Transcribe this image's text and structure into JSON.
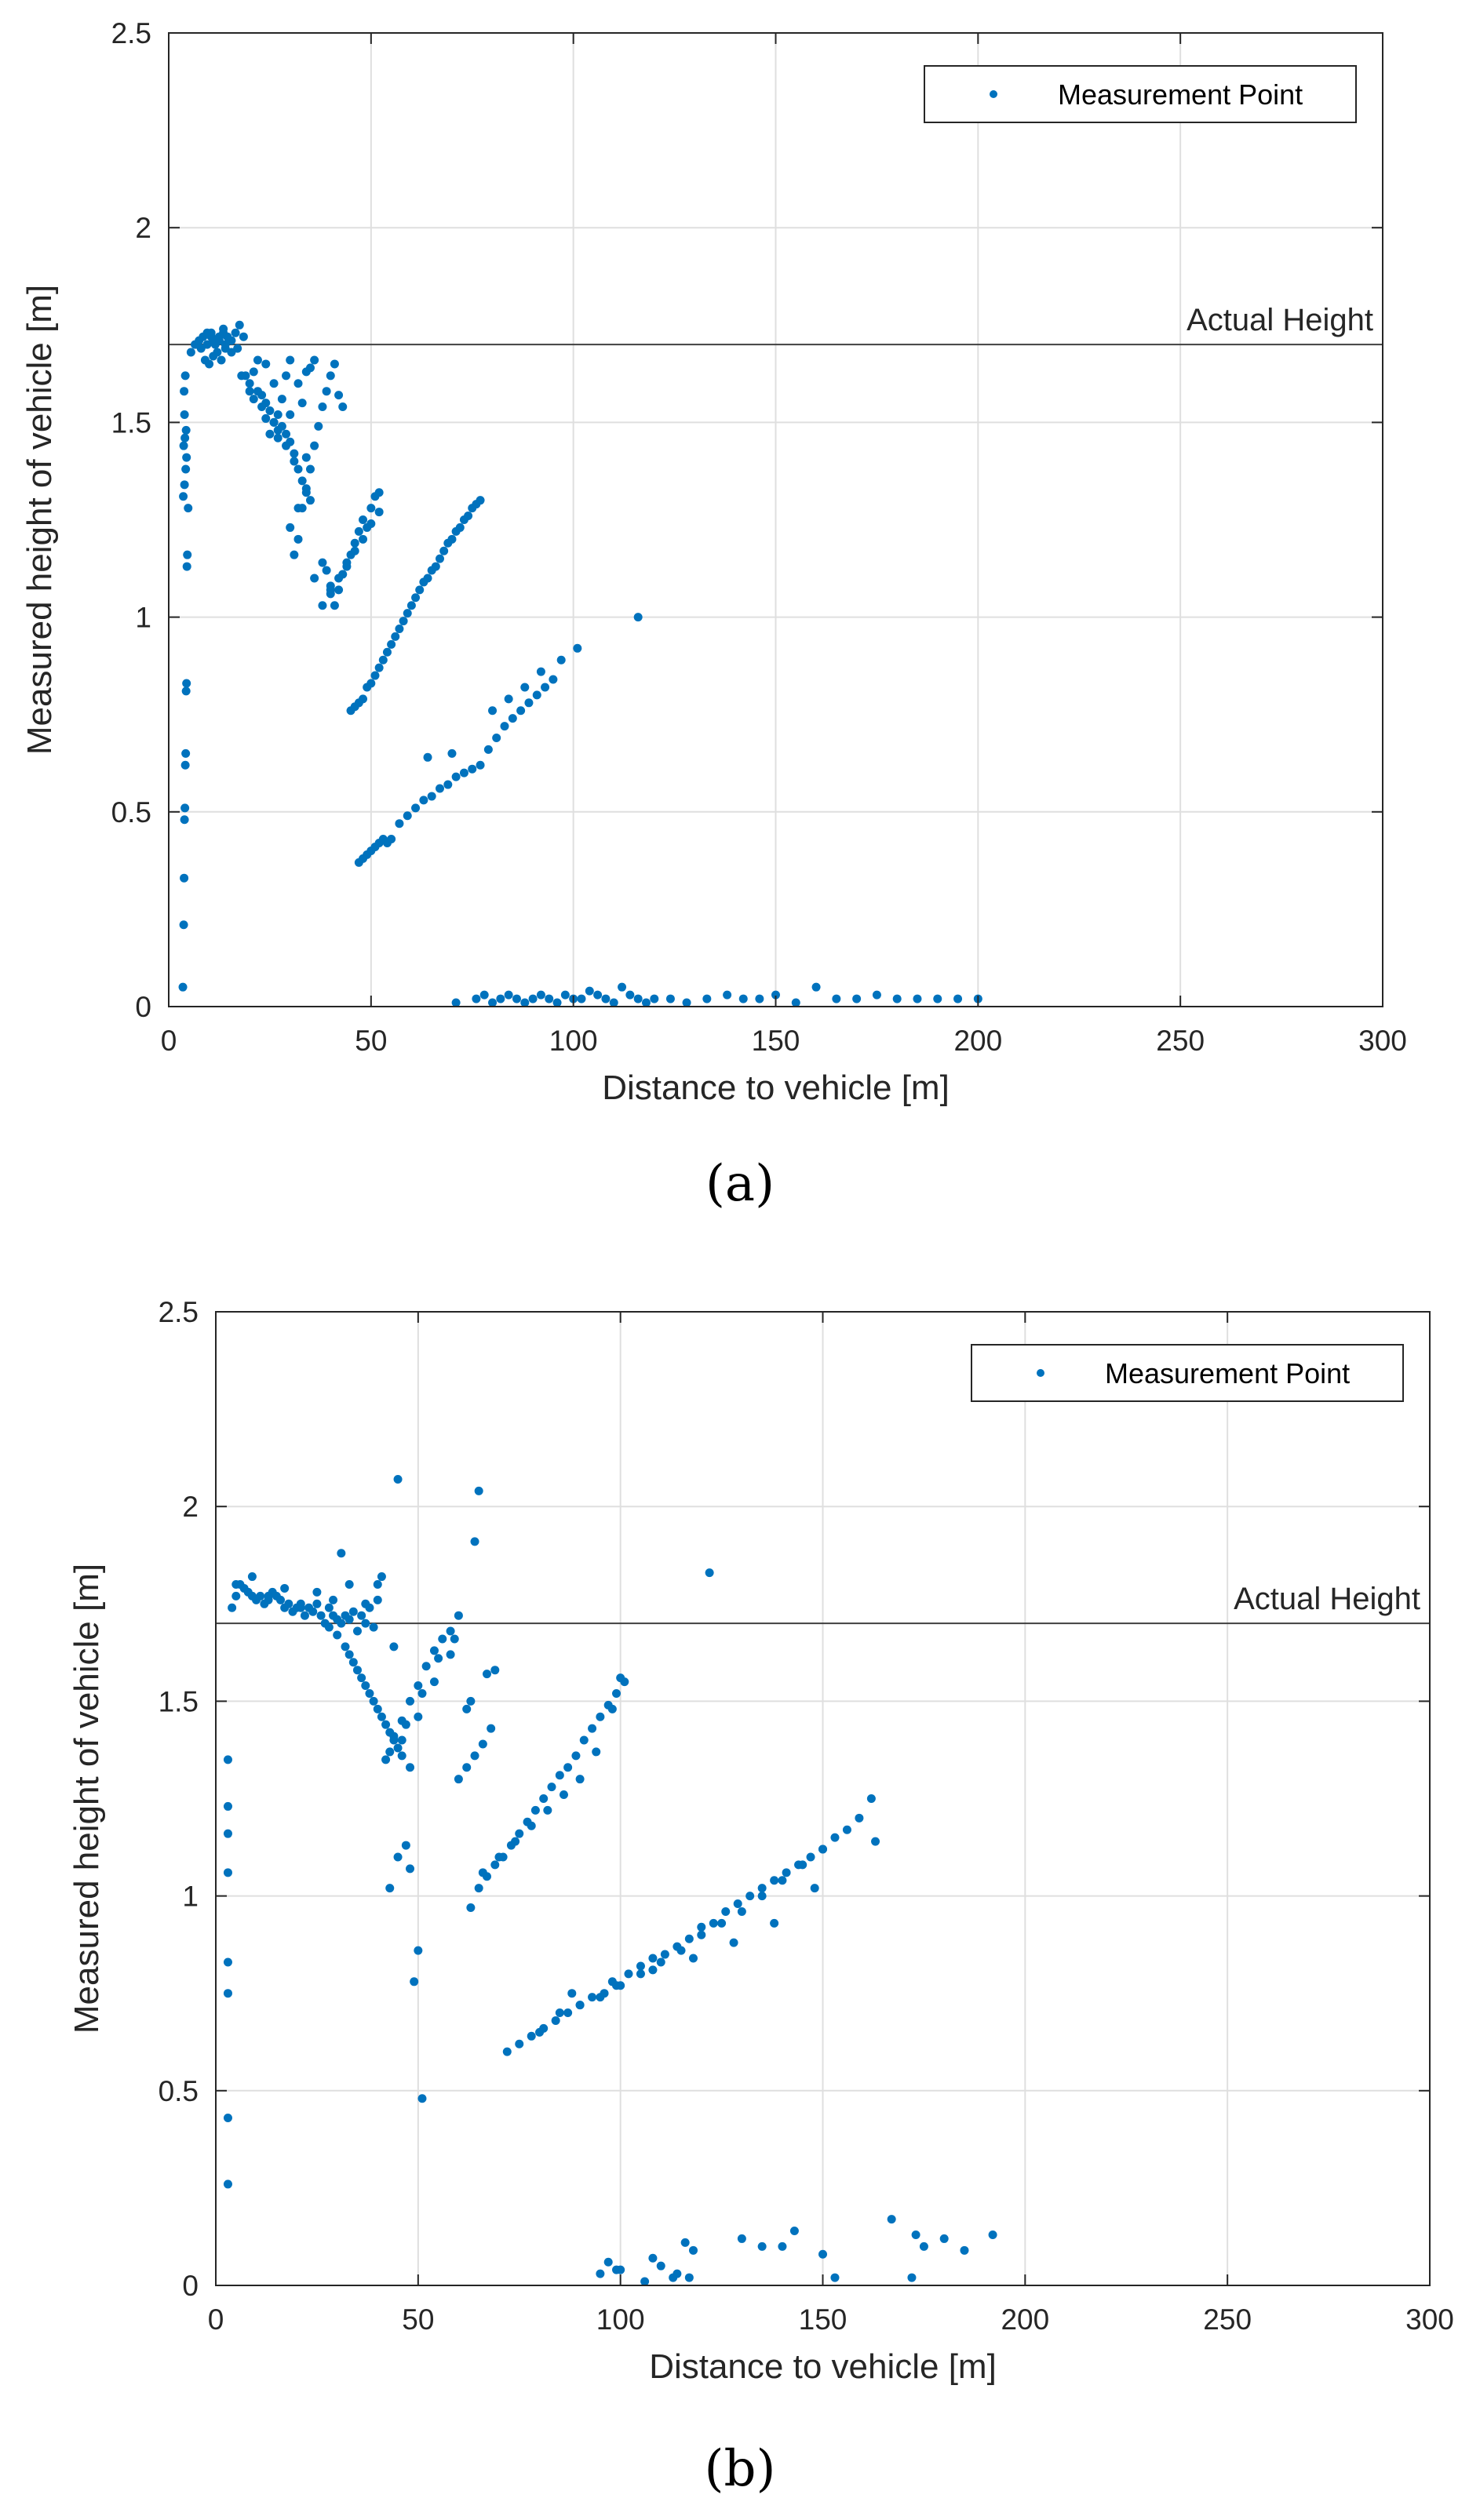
{
  "colors": {
    "point": "#0072BD",
    "grid": "#DFDFDF",
    "axis": "#262626",
    "reference": "#404040"
  },
  "chart_data": [
    {
      "type": "scatter",
      "caption": "(a)",
      "xlabel": "Distance to vehicle [m]",
      "ylabel": "Measured height of vehicle [m]",
      "xlim": [
        0,
        300
      ],
      "ylim": [
        0,
        2.5
      ],
      "xticks": [
        0,
        50,
        100,
        150,
        200,
        250,
        300
      ],
      "yticks": [
        0,
        0.5,
        1,
        1.5,
        2,
        2.5
      ],
      "xtick_labels": [
        "0",
        "50",
        "100",
        "150",
        "200",
        "250",
        "300"
      ],
      "ytick_labels": [
        "0",
        "0.5",
        "1",
        "1.5",
        "2",
        "2.5"
      ],
      "grid": true,
      "legend": {
        "location": "top-right",
        "entries": [
          "Measurement Point"
        ]
      },
      "reference_line": {
        "y": 1.7,
        "label": "Actual Height"
      },
      "series": [
        {
          "name": "Measurement Point",
          "x": [
            3.5,
            3.7,
            3.8,
            3.9,
            4.0,
            4.1,
            4.2,
            4.3,
            4.4,
            4.5,
            4.6,
            4.8,
            3.6,
            3.9,
            4.2,
            4.4,
            3.7,
            4.0,
            4.3,
            3.9,
            3.8,
            4.1,
            5.5,
            6.5,
            7.5,
            8.5,
            9.5,
            10.5,
            11.5,
            12.5,
            13.5,
            14.5,
            15.5,
            16.5,
            17.5,
            18.5,
            9,
            10,
            11,
            12,
            13,
            14,
            8,
            9.5,
            11,
            12.5,
            14,
            15.5,
            17,
            7,
            10.5,
            13.5,
            18,
            19,
            20,
            21,
            22,
            23,
            24,
            25,
            26,
            27,
            28,
            29,
            30,
            31,
            32,
            33,
            34,
            35,
            22,
            24,
            26,
            28,
            30,
            25,
            27,
            29,
            31,
            33,
            20,
            23,
            26,
            29,
            32,
            35,
            36,
            21,
            24,
            27,
            30,
            34,
            31,
            32,
            33,
            34,
            35,
            36,
            37,
            38,
            39,
            40,
            41,
            42,
            43,
            36,
            38,
            40,
            30,
            32,
            34,
            38,
            39,
            40,
            41,
            42,
            43,
            44,
            45,
            46,
            47,
            48,
            49,
            50,
            51,
            52,
            40,
            42,
            44,
            46,
            48,
            50,
            52,
            45,
            47,
            49,
            51,
            53,
            55,
            57,
            59,
            61,
            63,
            65,
            67,
            69,
            71,
            73,
            75,
            77,
            46,
            48,
            50,
            52,
            54,
            56,
            58,
            60,
            62,
            64,
            66,
            68,
            70,
            72,
            74,
            76,
            47,
            48,
            49,
            50,
            51,
            52,
            53,
            54,
            55,
            57,
            59,
            61,
            63,
            65,
            67,
            69,
            71,
            73,
            75,
            77,
            64,
            70,
            79,
            81,
            83,
            85,
            87,
            89,
            91,
            93,
            95,
            80,
            84,
            88,
            92,
            97,
            101,
            116,
            71,
            76,
            78,
            80,
            82,
            84,
            86,
            88,
            90,
            92,
            94,
            96,
            98,
            100,
            102,
            104,
            106,
            108,
            110,
            112,
            114,
            116,
            118,
            120,
            124,
            128,
            133,
            138,
            142,
            146,
            150,
            155,
            160,
            165,
            170,
            175,
            180,
            185,
            190,
            195,
            200
          ],
          "y": [
            0.05,
            0.21,
            0.33,
            0.48,
            0.51,
            0.62,
            0.65,
            0.81,
            0.83,
            1.13,
            1.16,
            1.28,
            1.31,
            1.34,
            1.38,
            1.41,
            1.44,
            1.46,
            1.48,
            1.52,
            1.58,
            1.62,
            1.68,
            1.7,
            1.71,
            1.72,
            1.73,
            1.72,
            1.7,
            1.71,
            1.73,
            1.72,
            1.71,
            1.73,
            1.75,
            1.72,
            1.66,
            1.65,
            1.67,
            1.68,
            1.66,
            1.69,
            1.69,
            1.7,
            1.71,
            1.72,
            1.7,
            1.68,
            1.69,
            1.7,
            1.73,
            1.74,
            1.62,
            1.62,
            1.6,
            1.63,
            1.58,
            1.57,
            1.55,
            1.53,
            1.5,
            1.52,
            1.49,
            1.47,
            1.45,
            1.4,
            1.38,
            1.35,
            1.33,
            1.3,
            1.66,
            1.65,
            1.6,
            1.56,
            1.52,
            1.47,
            1.48,
            1.44,
            1.42,
            1.55,
            1.58,
            1.54,
            1.5,
            1.62,
            1.6,
            1.64,
            1.66,
            1.56,
            1.51,
            1.46,
            1.66,
            1.63,
            1.16,
            1.2,
            1.28,
            1.32,
            1.38,
            1.44,
            1.49,
            1.54,
            1.58,
            1.62,
            1.65,
            1.57,
            1.54,
            1.1,
            1.03,
            1.07,
            1.23,
            1.28,
            1.41,
            1.14,
            1.12,
            1.08,
            1.03,
            1.07,
            1.11,
            1.14,
            1.16,
            1.19,
            1.22,
            1.25,
            1.23,
            1.28,
            1.31,
            1.32,
            1.06,
            1.1,
            1.13,
            1.17,
            1.2,
            1.24,
            1.27,
            0.76,
            0.78,
            0.82,
            0.85,
            0.89,
            0.93,
            0.97,
            1.01,
            1.05,
            1.09,
            1.12,
            1.15,
            1.19,
            1.22,
            1.25,
            1.28,
            1.3,
            0.77,
            0.79,
            0.83,
            0.87,
            0.91,
            0.95,
            0.99,
            1.03,
            1.07,
            1.1,
            1.13,
            1.17,
            1.2,
            1.23,
            1.26,
            1.29,
            0.37,
            0.38,
            0.39,
            0.4,
            0.41,
            0.42,
            0.43,
            0.42,
            0.43,
            0.47,
            0.49,
            0.51,
            0.53,
            0.54,
            0.56,
            0.57,
            0.59,
            0.6,
            0.61,
            0.62,
            0.64,
            0.65,
            0.66,
            0.69,
            0.72,
            0.74,
            0.76,
            0.78,
            0.8,
            0.82,
            0.84,
            0.76,
            0.79,
            0.82,
            0.86,
            0.89,
            0.92,
            1.0,
            0.01,
            0.02,
            0.03,
            0.01,
            0.02,
            0.03,
            0.02,
            0.01,
            0.02,
            0.03,
            0.02,
            0.01,
            0.03,
            0.02,
            0.02,
            0.04,
            0.03,
            0.02,
            0.01,
            0.05,
            0.03,
            0.02,
            0.01,
            0.02,
            0.02,
            0.01,
            0.02,
            0.03,
            0.02,
            0.02,
            0.03,
            0.01,
            0.05,
            0.02,
            0.02,
            0.03,
            0.02,
            0.02,
            0.02,
            0.02,
            0.02
          ]
        }
      ]
    },
    {
      "type": "scatter",
      "caption": "(b)",
      "xlabel": "Distance to vehicle [m]",
      "ylabel": "Measured height of vehicle [m]",
      "xlim": [
        0,
        300
      ],
      "ylim": [
        0,
        2.5
      ],
      "xticks": [
        0,
        50,
        100,
        150,
        200,
        250,
        300
      ],
      "yticks": [
        0,
        0.5,
        1,
        1.5,
        2,
        2.5
      ],
      "xtick_labels": [
        "0",
        "50",
        "100",
        "150",
        "200",
        "250",
        "300"
      ],
      "ytick_labels": [
        "0",
        "0.5",
        "1",
        "1.5",
        "2",
        "2.5"
      ],
      "grid": true,
      "legend": {
        "location": "top-right",
        "entries": [
          "Measurement Point"
        ]
      },
      "reference_line": {
        "y": 1.7,
        "label": "Actual Height"
      },
      "series": [
        {
          "name": "Measurement Point",
          "x": [
            3,
            3,
            3,
            3,
            3,
            3,
            3,
            3,
            4,
            5,
            6,
            7,
            8,
            9,
            10,
            11,
            12,
            13,
            14,
            15,
            16,
            17,
            18,
            19,
            20,
            21,
            22,
            23,
            24,
            25,
            26,
            27,
            28,
            29,
            30,
            31,
            32,
            33,
            34,
            35,
            36,
            37,
            38,
            39,
            40,
            5,
            9,
            13,
            17,
            21,
            25,
            29,
            33,
            37,
            41,
            31,
            40,
            44,
            45,
            65,
            64,
            60,
            122,
            28,
            30,
            32,
            34,
            36,
            38,
            40,
            42,
            44,
            46,
            48,
            33,
            35,
            37,
            39,
            41,
            43,
            45,
            42,
            44,
            46,
            48,
            50,
            52,
            54,
            56,
            58,
            60,
            62,
            64,
            66,
            68,
            43,
            47,
            51,
            55,
            59,
            63,
            67,
            46,
            50,
            54,
            58,
            62,
            69,
            43,
            45,
            47,
            48,
            49,
            50,
            51,
            63,
            65,
            67,
            69,
            71,
            73,
            75,
            77,
            79,
            81,
            83,
            85,
            87,
            89,
            91,
            93,
            95,
            97,
            99,
            101,
            66,
            70,
            74,
            78,
            82,
            86,
            90,
            94,
            98,
            100,
            72,
            75,
            78,
            81,
            84,
            87,
            90,
            93,
            96,
            99,
            102,
            105,
            108,
            111,
            114,
            117,
            120,
            123,
            126,
            129,
            132,
            135,
            138,
            141,
            144,
            147,
            150,
            153,
            156,
            159,
            162,
            163,
            80,
            85,
            90,
            95,
            100,
            105,
            110,
            115,
            120,
            125,
            130,
            135,
            140,
            145,
            150,
            88,
            98,
            108,
            118,
            128,
            138,
            148,
            95,
            97,
            100,
            106,
            110,
            113,
            116,
            118,
            130,
            135,
            140,
            143,
            150,
            153,
            167,
            172,
            173,
            175,
            180,
            185,
            192,
            108,
            114,
            117,
            99
          ],
          "y": [
            0.26,
            0.43,
            0.75,
            0.83,
            1.06,
            1.16,
            1.23,
            1.35,
            1.74,
            1.77,
            1.8,
            1.79,
            1.78,
            1.77,
            1.76,
            1.77,
            1.75,
            1.76,
            1.78,
            1.77,
            1.76,
            1.74,
            1.75,
            1.73,
            1.74,
            1.75,
            1.72,
            1.74,
            1.73,
            1.75,
            1.72,
            1.7,
            1.74,
            1.72,
            1.71,
            1.7,
            1.72,
            1.71,
            1.73,
            1.68,
            1.72,
            1.7,
            1.74,
            1.69,
            1.76,
            1.8,
            1.82,
            1.77,
            1.79,
            1.74,
            1.78,
            1.76,
            1.8,
            1.75,
            1.82,
            1.88,
            1.8,
            1.64,
            2.07,
            2.04,
            1.91,
            1.72,
            1.83,
            1.69,
            1.67,
            1.64,
            1.6,
            1.56,
            1.52,
            1.48,
            1.44,
            1.4,
            1.36,
            1.33,
            1.62,
            1.58,
            1.54,
            1.5,
            1.46,
            1.42,
            1.38,
            1.35,
            1.41,
            1.45,
            1.5,
            1.54,
            1.59,
            1.63,
            1.66,
            1.68,
            1.3,
            1.33,
            1.36,
            1.39,
            1.43,
            1.37,
            1.44,
            1.52,
            1.61,
            1.66,
            1.5,
            1.57,
            1.4,
            1.46,
            1.55,
            1.62,
            1.48,
            1.58,
            1.02,
            1.1,
            1.13,
            1.07,
            0.78,
            0.86,
            0.48,
            0.97,
            1.02,
            1.05,
            1.08,
            1.1,
            1.13,
            1.16,
            1.19,
            1.22,
            1.25,
            1.28,
            1.31,
            1.33,
            1.36,
            1.4,
            1.43,
            1.46,
            1.49,
            1.52,
            1.55,
            1.06,
            1.1,
            1.14,
            1.18,
            1.22,
            1.26,
            1.3,
            1.37,
            1.48,
            1.56,
            0.6,
            0.62,
            0.64,
            0.66,
            0.68,
            0.7,
            0.72,
            0.74,
            0.75,
            0.77,
            0.8,
            0.82,
            0.84,
            0.85,
            0.87,
            0.89,
            0.92,
            0.93,
            0.96,
            0.98,
            1.0,
            1.02,
            1.04,
            1.06,
            1.08,
            1.1,
            1.12,
            1.15,
            1.17,
            1.2,
            1.25,
            1.14,
            0.65,
            0.7,
            0.72,
            0.74,
            0.77,
            0.8,
            0.83,
            0.86,
            0.9,
            0.93,
            0.96,
            1.0,
            1.04,
            1.08,
            1.12,
            0.75,
            0.78,
            0.81,
            0.84,
            0.88,
            0.93,
            1.02,
            0.03,
            0.06,
            0.04,
            0.01,
            0.05,
            0.02,
            0.11,
            0.09,
            0.12,
            0.1,
            0.1,
            0.14,
            0.08,
            0.02,
            0.17,
            0.02,
            0.13,
            0.1,
            0.12,
            0.09,
            0.13,
            0.07,
            0.03,
            0.02,
            0.04
          ]
        }
      ]
    }
  ]
}
